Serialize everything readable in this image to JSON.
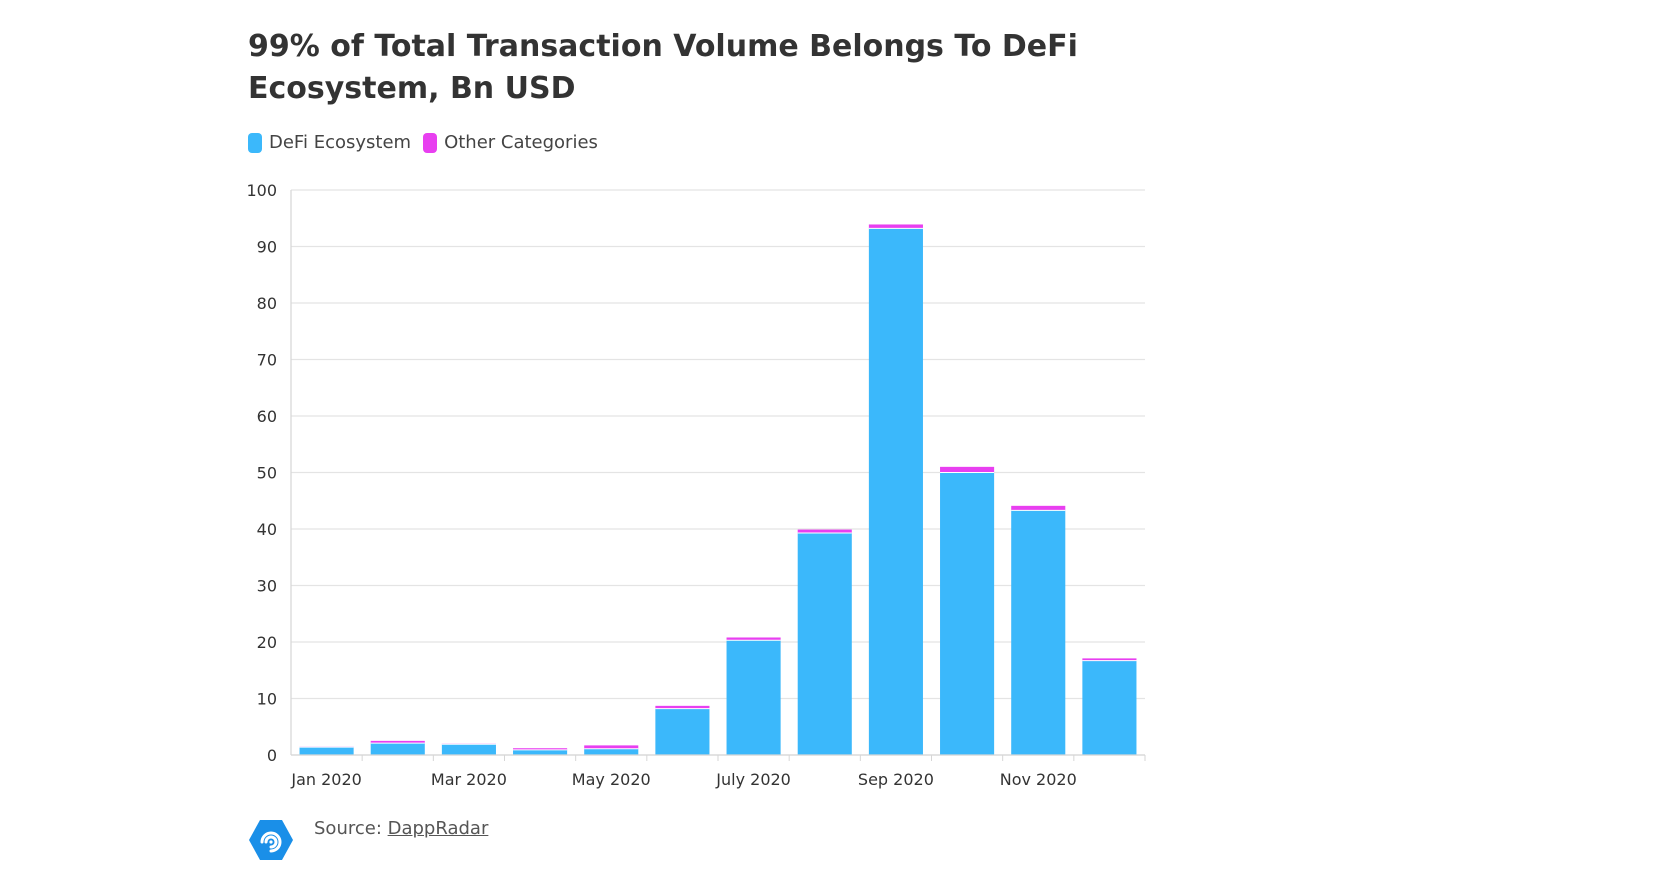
{
  "title": "99% of Total Transaction Volume Belongs To DeFi Ecosystem, Bn USD",
  "legend": [
    {
      "label": "DeFi Ecosystem",
      "color": "#3bb8fb"
    },
    {
      "label": "Other Categories",
      "color": "#e83ff0"
    }
  ],
  "source": {
    "prefix": "Source: ",
    "link_text": "DappRadar",
    "logo_icon": "dappradar-logo-icon"
  },
  "chart_data": {
    "type": "bar",
    "stacked": true,
    "title": "99% of Total Transaction Volume Belongs To DeFi Ecosystem, Bn USD",
    "xlabel": "",
    "ylabel": "",
    "ylim": [
      0,
      100
    ],
    "yticks": [
      0,
      10,
      20,
      30,
      40,
      50,
      60,
      70,
      80,
      90,
      100
    ],
    "categories": [
      "Jan 2020",
      "Feb 2020",
      "Mar 2020",
      "Apr 2020",
      "May 2020",
      "Jun 2020",
      "July 2020",
      "Aug 2020",
      "Sep 2020",
      "Oct 2020",
      "Nov 2020",
      "Dec 2020"
    ],
    "xtick_labels": [
      "Jan 2020",
      "",
      "Mar 2020",
      "",
      "May 2020",
      "",
      "July 2020",
      "",
      "Sep 2020",
      "",
      "Nov 2020",
      ""
    ],
    "series": [
      {
        "name": "DeFi Ecosystem",
        "color": "#3bb8fb",
        "values": [
          1.4,
          2.1,
          1.9,
          0.9,
          1.1,
          8.2,
          20.3,
          39.3,
          93.2,
          50.0,
          43.3,
          16.7
        ]
      },
      {
        "name": "Other Categories",
        "color": "#e83ff0",
        "values": [
          0.1,
          0.4,
          0.1,
          0.3,
          0.6,
          0.5,
          0.5,
          0.6,
          0.7,
          1.0,
          0.8,
          0.4
        ]
      }
    ],
    "grid": true
  }
}
